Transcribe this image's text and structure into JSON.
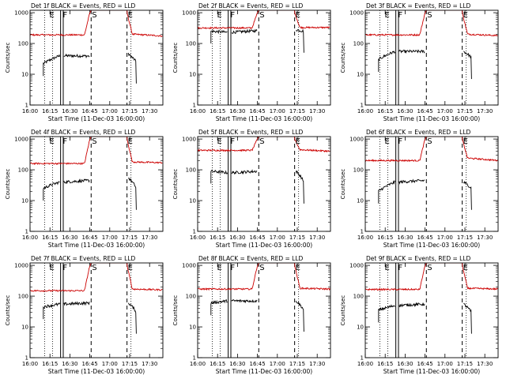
{
  "figure": {
    "background": "#ffffff",
    "event_color": "#000000",
    "lld_color": "#cc0000",
    "axis_color": "#000000"
  },
  "shared": {
    "ylabel": "Counts/sec",
    "xlabel": "Start Time (11-Dec-03 16:00:00)",
    "x_tick_labels": [
      "16:00",
      "16:15",
      "16:30",
      "16:45",
      "17:00",
      "17:15",
      "17:30"
    ],
    "x_tick_minutes": [
      0,
      15,
      30,
      45,
      60,
      75,
      90
    ],
    "y_tick_labels": [
      "1",
      "10",
      "100",
      "1000"
    ],
    "y_tick_values": [
      1,
      10,
      100,
      1000
    ],
    "xlim_minutes": [
      0,
      100
    ],
    "ylim": [
      1,
      1200
    ],
    "markers": {
      "E1": {
        "label": "E",
        "minute": 14
      },
      "F": {
        "label": "F",
        "minute": 24
      },
      "S": {
        "label": "S",
        "minute": 46
      },
      "E2": {
        "label": "E",
        "minute": 73
      }
    }
  },
  "chart_data": [
    {
      "type": "line",
      "title": "Det 1f BLACK = Events, RED = LLD",
      "scale": "log",
      "series": [
        {
          "name": "Events",
          "color": "#000000",
          "base": 40,
          "pre": 22,
          "seg_end": 39,
          "post": 45,
          "post_end": 25
        },
        {
          "name": "LLD",
          "color": "#cc0000",
          "base": 190,
          "pre": 180,
          "seg_end": 180,
          "post": 200,
          "post_end": 175
        }
      ]
    },
    {
      "type": "line",
      "title": "Det 2f BLACK = Events, RED = LLD",
      "scale": "log",
      "series": [
        {
          "name": "Events",
          "color": "#000000",
          "base": 230,
          "pre": 250,
          "seg_end": 260,
          "post": 280,
          "post_end": 250
        },
        {
          "name": "LLD",
          "color": "#cc0000",
          "base": 320,
          "pre": 360,
          "seg_end": 330,
          "post": 330,
          "post_end": 330
        }
      ]
    },
    {
      "type": "line",
      "title": "Det 3f BLACK = Events, RED = LLD",
      "scale": "log",
      "series": [
        {
          "name": "Events",
          "color": "#000000",
          "base": 55,
          "pre": 30,
          "seg_end": 55,
          "post": 55,
          "post_end": 35
        },
        {
          "name": "LLD",
          "color": "#cc0000",
          "base": 190,
          "pre": 180,
          "seg_end": 180,
          "post": 200,
          "post_end": 180
        }
      ]
    },
    {
      "type": "line",
      "title": "Det 4f BLACK = Events, RED = LLD",
      "scale": "log",
      "series": [
        {
          "name": "Events",
          "color": "#000000",
          "base": 40,
          "pre": 25,
          "seg_end": 45,
          "post": 55,
          "post_end": 25
        },
        {
          "name": "LLD",
          "color": "#cc0000",
          "base": 160,
          "pre": 150,
          "seg_end": 180,
          "post": 180,
          "post_end": 170
        }
      ]
    },
    {
      "type": "line",
      "title": "Det 5f BLACK = Events, RED = LLD",
      "scale": "log",
      "series": [
        {
          "name": "Events",
          "color": "#000000",
          "base": 80,
          "pre": 90,
          "seg_end": 90,
          "post": 90,
          "post_end": 40
        },
        {
          "name": "LLD",
          "color": "#cc0000",
          "base": 430,
          "pre": 420,
          "seg_end": 430,
          "post": 450,
          "post_end": 400
        }
      ]
    },
    {
      "type": "line",
      "title": "Det 6f BLACK = Events, RED = LLD",
      "scale": "log",
      "series": [
        {
          "name": "Events",
          "color": "#000000",
          "base": 40,
          "pre": 20,
          "seg_end": 45,
          "post": 40,
          "post_end": 25
        },
        {
          "name": "LLD",
          "color": "#cc0000",
          "base": 200,
          "pre": 190,
          "seg_end": 210,
          "post": 240,
          "post_end": 200
        }
      ]
    },
    {
      "type": "line",
      "title": "Det 7f BLACK = Events, RED = LLD",
      "scale": "log",
      "series": [
        {
          "name": "Events",
          "color": "#000000",
          "base": 55,
          "pre": 45,
          "seg_end": 60,
          "post": 60,
          "post_end": 30
        },
        {
          "name": "LLD",
          "color": "#cc0000",
          "base": 150,
          "pre": 150,
          "seg_end": 160,
          "post": 170,
          "post_end": 160
        }
      ]
    },
    {
      "type": "line",
      "title": "Det 8f BLACK = Events, RED = LLD",
      "scale": "log",
      "series": [
        {
          "name": "Events",
          "color": "#000000",
          "base": 70,
          "pre": 60,
          "seg_end": 70,
          "post": 70,
          "post_end": 35
        },
        {
          "name": "LLD",
          "color": "#cc0000",
          "base": 170,
          "pre": 170,
          "seg_end": 170,
          "post": 180,
          "post_end": 170
        }
      ]
    },
    {
      "type": "line",
      "title": "Det 9f BLACK = Events, RED = LLD",
      "scale": "log",
      "series": [
        {
          "name": "Events",
          "color": "#000000",
          "base": 50,
          "pre": 35,
          "seg_end": 55,
          "post": 55,
          "post_end": 30
        },
        {
          "name": "LLD",
          "color": "#cc0000",
          "base": 165,
          "pre": 160,
          "seg_end": 170,
          "post": 180,
          "post_end": 170
        }
      ]
    }
  ]
}
